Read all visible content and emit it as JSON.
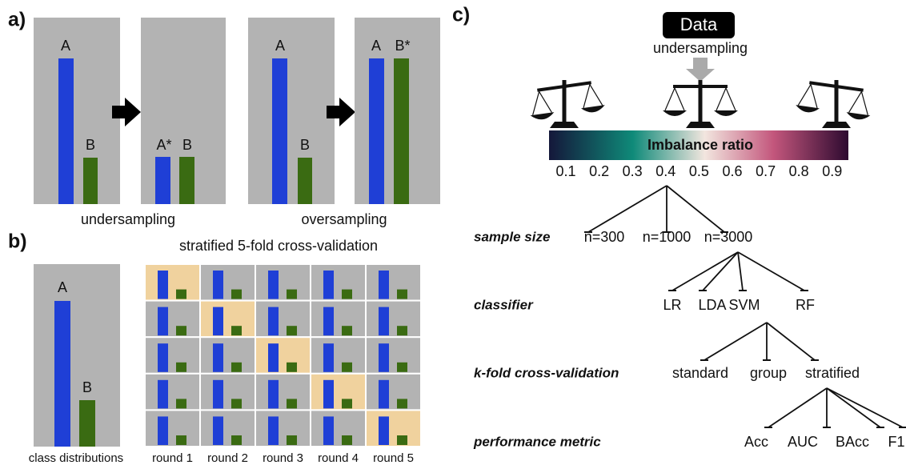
{
  "panel_a": {
    "label": "a)",
    "undersampling": {
      "before_labels": [
        "A",
        "B"
      ],
      "after_labels": [
        "A*",
        "B"
      ],
      "caption": "undersampling"
    },
    "oversampling": {
      "before_labels": [
        "A",
        "B"
      ],
      "after_labels": [
        "A",
        "B*"
      ],
      "caption": "oversampling"
    }
  },
  "panel_b": {
    "label": "b)",
    "title": "stratified 5-fold cross-validation",
    "class_labels": [
      "A",
      "B"
    ],
    "caption": "class distributions",
    "rounds": [
      "round 1",
      "round 2",
      "round 3",
      "round 4",
      "round 5"
    ]
  },
  "panel_c": {
    "label": "c)",
    "data": "Data",
    "method": "undersampling",
    "colorbar_label": "Imbalance ratio",
    "ratios": [
      0.1,
      0.2,
      0.3,
      0.4,
      0.5,
      0.6,
      0.7,
      0.8,
      0.9
    ],
    "levels": [
      {
        "name": "sample size",
        "options": [
          "n=300",
          "n=1000",
          "n=3000"
        ]
      },
      {
        "name": "classifier",
        "options": [
          "LR",
          "LDA",
          "SVM",
          "RF"
        ]
      },
      {
        "name": "k-fold cross-validation",
        "options": [
          "standard",
          "group",
          "stratified"
        ]
      },
      {
        "name": "performance metric",
        "options": [
          "Acc",
          "AUC",
          "BAcc",
          "F1"
        ]
      }
    ]
  }
}
